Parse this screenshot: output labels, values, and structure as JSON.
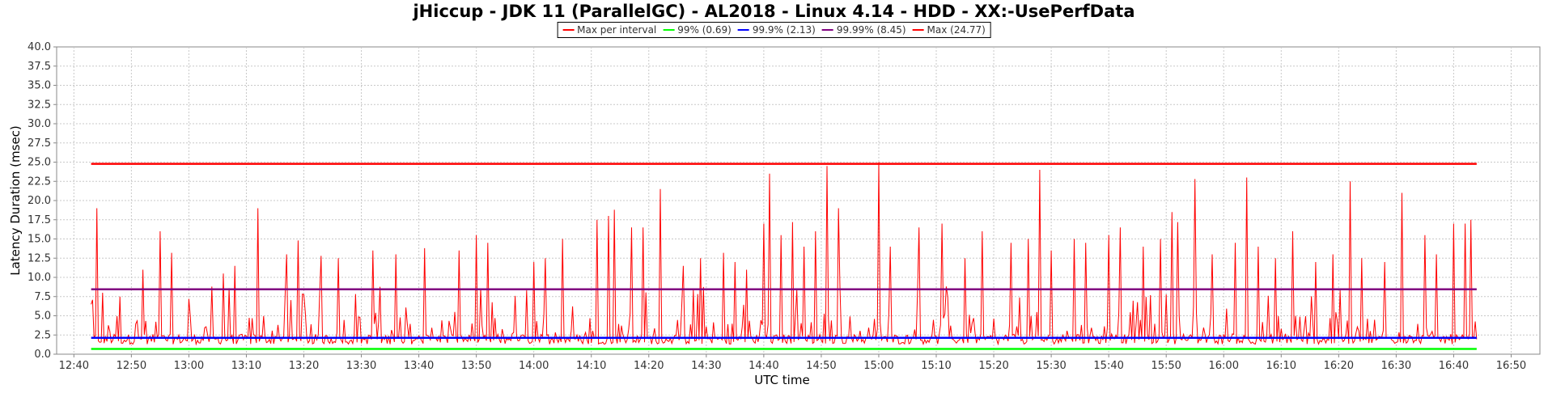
{
  "chart_data": {
    "type": "line",
    "title": "jHiccup - JDK 11 (ParallelGC) - AL2018 - Linux 4.14 - HDD - XX:-UsePerfData",
    "xlabel": "UTC time",
    "ylabel": "Latency Duration (msec)",
    "ylim": [
      0,
      40
    ],
    "y_ticks": [
      "0.0",
      "2.5",
      "5.0",
      "7.5",
      "10.0",
      "12.5",
      "15.0",
      "17.5",
      "20.0",
      "22.5",
      "25.0",
      "27.5",
      "30.0",
      "32.5",
      "35.0",
      "37.5",
      "40.0"
    ],
    "x_range_minutes": [
      "12:37",
      "16:55"
    ],
    "x_ticks": [
      "12:40",
      "12:50",
      "13:00",
      "13:10",
      "13:20",
      "13:30",
      "13:40",
      "13:50",
      "14:00",
      "14:10",
      "14:20",
      "14:30",
      "14:40",
      "14:50",
      "15:00",
      "15:10",
      "15:20",
      "15:30",
      "15:40",
      "15:50",
      "16:00",
      "16:10",
      "16:20",
      "16:30",
      "16:40",
      "16:50"
    ],
    "grid": true,
    "legend_position": "top-center",
    "series": [
      {
        "name": "Max per interval",
        "color": "#ff0000",
        "x_start": "12:43",
        "x_end": "16:44",
        "baseline_range": [
          1.3,
          2.6
        ],
        "spikes": [
          [
            "12:43",
            6.5
          ],
          [
            "12:44",
            19.0
          ],
          [
            "12:45",
            8.0
          ],
          [
            "12:48",
            7.5
          ],
          [
            "12:52",
            11.0
          ],
          [
            "12:55",
            16.0
          ],
          [
            "12:57",
            13.2
          ],
          [
            "13:04",
            8.8
          ],
          [
            "13:06",
            10.5
          ],
          [
            "13:08",
            11.5
          ],
          [
            "13:12",
            19.0
          ],
          [
            "13:17",
            13.0
          ],
          [
            "13:19",
            14.8
          ],
          [
            "13:23",
            12.8
          ],
          [
            "13:26",
            12.5
          ],
          [
            "13:32",
            13.5
          ],
          [
            "13:36",
            13.0
          ],
          [
            "13:41",
            13.8
          ],
          [
            "13:47",
            13.5
          ],
          [
            "13:50",
            15.5
          ],
          [
            "13:52",
            14.5
          ],
          [
            "14:00",
            12.0
          ],
          [
            "14:02",
            12.5
          ],
          [
            "14:05",
            15.0
          ],
          [
            "14:11",
            17.5
          ],
          [
            "14:13",
            18.0
          ],
          [
            "14:14",
            18.8
          ],
          [
            "14:17",
            16.5
          ],
          [
            "14:19",
            16.5
          ],
          [
            "14:22",
            21.5
          ],
          [
            "14:26",
            11.5
          ],
          [
            "14:29",
            12.5
          ],
          [
            "14:33",
            13.2
          ],
          [
            "14:35",
            12.0
          ],
          [
            "14:37",
            11.0
          ],
          [
            "14:40",
            17.0
          ],
          [
            "14:41",
            23.5
          ],
          [
            "14:43",
            15.5
          ],
          [
            "14:45",
            17.2
          ],
          [
            "14:47",
            14.0
          ],
          [
            "14:49",
            16.0
          ],
          [
            "14:51",
            24.5
          ],
          [
            "14:53",
            19.0
          ],
          [
            "15:00",
            25.0
          ],
          [
            "15:02",
            14.0
          ],
          [
            "15:07",
            16.5
          ],
          [
            "15:11",
            17.0
          ],
          [
            "15:15",
            12.5
          ],
          [
            "15:18",
            16.0
          ],
          [
            "15:23",
            14.5
          ],
          [
            "15:26",
            15.0
          ],
          [
            "15:28",
            24.0
          ],
          [
            "15:30",
            13.5
          ],
          [
            "15:34",
            15.0
          ],
          [
            "15:36",
            14.5
          ],
          [
            "15:40",
            15.5
          ],
          [
            "15:42",
            16.5
          ],
          [
            "15:46",
            14.0
          ],
          [
            "15:49",
            15.0
          ],
          [
            "15:51",
            18.5
          ],
          [
            "15:52",
            17.2
          ],
          [
            "15:55",
            22.8
          ],
          [
            "15:58",
            13.0
          ],
          [
            "16:02",
            14.5
          ],
          [
            "16:04",
            23.0
          ],
          [
            "16:06",
            14.0
          ],
          [
            "16:09",
            12.5
          ],
          [
            "16:12",
            16.0
          ],
          [
            "16:16",
            12.0
          ],
          [
            "16:19",
            13.0
          ],
          [
            "16:22",
            22.5
          ],
          [
            "16:24",
            12.5
          ],
          [
            "16:28",
            12.0
          ],
          [
            "16:31",
            21.0
          ],
          [
            "16:35",
            15.5
          ],
          [
            "16:37",
            13.0
          ],
          [
            "16:40",
            17.0
          ],
          [
            "16:42",
            17.0
          ],
          [
            "16:43",
            17.5
          ]
        ]
      },
      {
        "name": "99% (0.69)",
        "color": "#00ff00",
        "value": 0.69,
        "x_start": "12:43",
        "x_end": "16:44"
      },
      {
        "name": "99.9% (2.13)",
        "color": "#0000ff",
        "value": 2.13,
        "x_start": "12:43",
        "x_end": "16:44"
      },
      {
        "name": "99.99% (8.45)",
        "color": "#800080",
        "value": 8.45,
        "x_start": "12:43",
        "x_end": "16:44"
      },
      {
        "name": "Max (24.77)",
        "color": "#ff0000",
        "value": 24.77,
        "x_start": "12:43",
        "x_end": "16:44"
      }
    ]
  }
}
